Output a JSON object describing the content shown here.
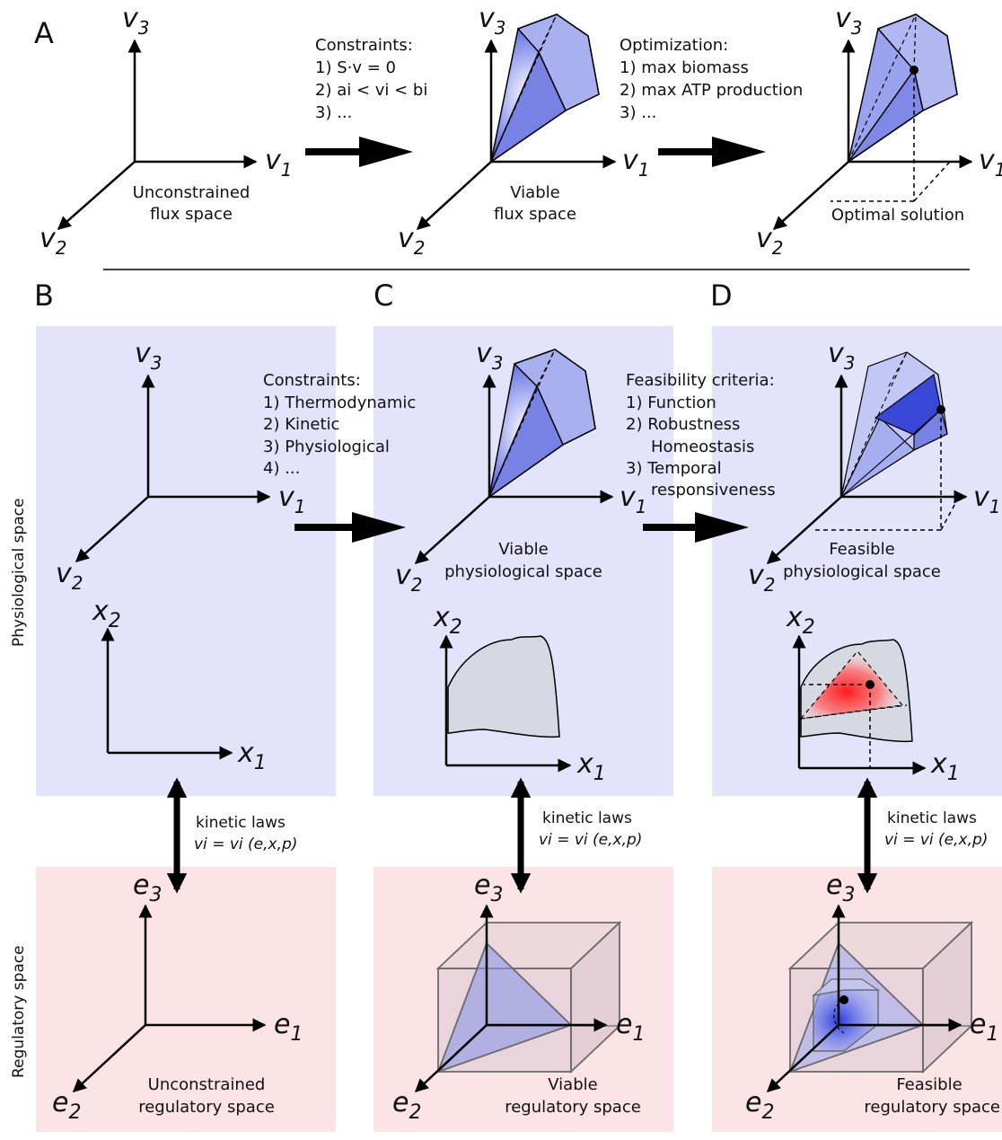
{
  "panels": {
    "A": "A",
    "B": "B",
    "C": "C",
    "D": "D"
  },
  "side_labels": {
    "physiological": "Physiological space",
    "regulatory": "Regulatory space"
  },
  "axes": {
    "v1": "v",
    "v2": "v",
    "v3": "v",
    "v_sub1": "1",
    "v_sub2": "2",
    "v_sub3": "3",
    "x": "x",
    "x_sub1": "1",
    "x_sub2": "2",
    "e": "e",
    "e_sub1": "1",
    "e_sub2": "2",
    "e_sub3": "3"
  },
  "row_a": {
    "constraints": {
      "title": "Constraints:",
      "items": [
        "1) S·v = 0",
        "2) ai < vi < bi",
        "3) ..."
      ]
    },
    "optimization": {
      "title": "Optimization:",
      "items": [
        "1) max biomass",
        "2) max ATP production",
        "3) ..."
      ]
    },
    "captions": {
      "unconstrained": [
        "Unconstrained",
        "flux space"
      ],
      "viable": [
        "Viable",
        "flux space"
      ],
      "optimal": "Optimal solution"
    }
  },
  "row_b": {
    "constraints": {
      "title": "Constraints:",
      "items": [
        "1) Thermodynamic",
        "2) Kinetic",
        "3) Physiological",
        "4) ..."
      ]
    },
    "feasibility": {
      "title": "Feasibility criteria:",
      "items": [
        "1) Function",
        "2) Robustness",
        "Homeostasis",
        "3) Temporal",
        "responsiveness"
      ]
    },
    "captions": {
      "viable_phys": [
        "Viable",
        "physiological space"
      ],
      "feasible_phys": [
        "Feasible",
        "physiological space"
      ],
      "unconstrained_reg": [
        "Unconstrained",
        "regulatory space"
      ],
      "viable_reg": [
        "Viable",
        "regulatory space"
      ],
      "feasible_reg": [
        "Feasible",
        "regulatory space"
      ]
    },
    "kinetic": {
      "title": "kinetic laws",
      "formula": "vi = vi (e,x,p)"
    }
  },
  "colors": {
    "blue_bg": "#e3e3fb",
    "pink_bg": "#fbe3e6",
    "cone": "#8e98ea",
    "region": "#d6d8e2"
  }
}
